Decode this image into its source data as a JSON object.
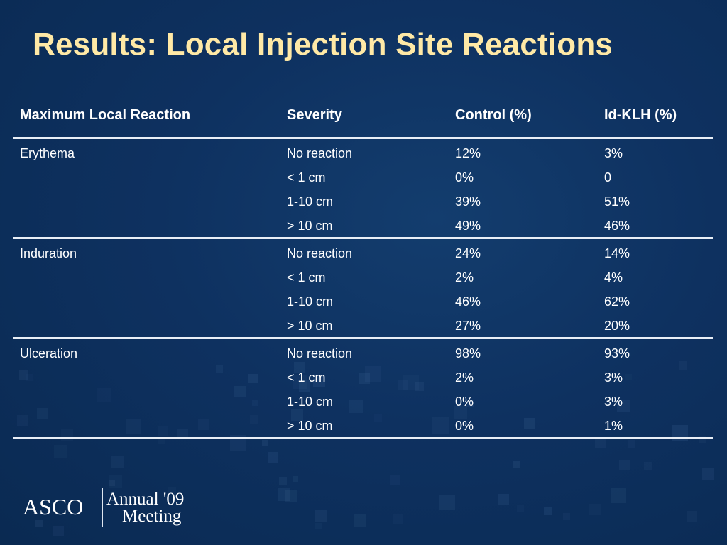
{
  "slide": {
    "title": "Results: Local Injection Site Reactions",
    "title_color": "#ffe9a6",
    "background_color": "#0e3160"
  },
  "table": {
    "headers": [
      "Maximum Local Reaction",
      "Severity",
      "Control (%)",
      "Id-KLH (%)"
    ],
    "groups": [
      {
        "reaction": "Erythema",
        "rows": [
          {
            "severity": "No reaction",
            "control": "12%",
            "idklh": "3%"
          },
          {
            "severity": "< 1 cm",
            "control": "0%",
            "idklh": "0"
          },
          {
            "severity": "1-10 cm",
            "control": "39%",
            "idklh": "51%"
          },
          {
            "severity": "> 10 cm",
            "control": "49%",
            "idklh": "46%"
          }
        ]
      },
      {
        "reaction": "Induration",
        "rows": [
          {
            "severity": "No reaction",
            "control": "24%",
            "idklh": "14%"
          },
          {
            "severity": "< 1 cm",
            "control": "2%",
            "idklh": "4%"
          },
          {
            "severity": "1-10 cm",
            "control": "46%",
            "idklh": "62%"
          },
          {
            "severity": "> 10 cm",
            "control": "27%",
            "idklh": "20%"
          }
        ]
      },
      {
        "reaction": "Ulceration",
        "rows": [
          {
            "severity": "No reaction",
            "control": "98%",
            "idklh": "93%"
          },
          {
            "severity": "< 1 cm",
            "control": "2%",
            "idklh": "3%"
          },
          {
            "severity": "1-10 cm",
            "control": "0%",
            "idklh": "3%"
          },
          {
            "severity": "> 10 cm",
            "control": "0%",
            "idklh": "1%"
          }
        ]
      }
    ]
  },
  "logo": {
    "org": "ASCO",
    "line1": "Annual '09",
    "line2": "Meeting"
  }
}
